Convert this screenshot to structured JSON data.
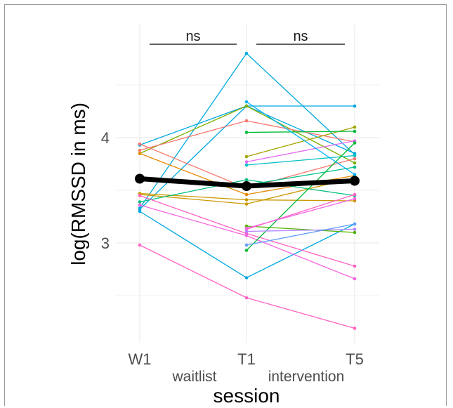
{
  "chart_data": {
    "type": "line",
    "xlabel": "session",
    "ylabel": "log(RMSSD in ms)",
    "categories": [
      "W1",
      "T1",
      "T5"
    ],
    "condition_labels": [
      "waitlist",
      "intervention"
    ],
    "significance": [
      {
        "from": "W1",
        "to": "T1",
        "label": "ns"
      },
      {
        "from": "T1",
        "to": "T5",
        "label": "ns"
      }
    ],
    "yticks": [
      3,
      4
    ],
    "ylim": [
      2.1,
      4.9
    ],
    "grid": true,
    "legend": "none",
    "mean": {
      "values": [
        3.61,
        3.54,
        3.59
      ],
      "color": "#000000"
    },
    "series": [
      {
        "values": [
          3.93,
          4.3,
          3.85
        ],
        "color": "#00A9E0"
      },
      {
        "values": [
          3.32,
          4.3,
          4.3
        ],
        "color": "#00A9E0"
      },
      {
        "values": [
          3.33,
          4.8,
          3.84
        ],
        "color": "#00A9E0"
      },
      {
        "values": [
          3.3,
          2.67,
          3.18
        ],
        "color": "#00A9E0"
      },
      {
        "values": [
          3.85,
          4.3,
          3.76
        ],
        "color": "#7CAE00"
      },
      {
        "values": [
          3.94,
          3.52,
          3.8
        ],
        "color": "#F8766D"
      },
      {
        "values": [
          3.88,
          4.16,
          3.96
        ],
        "color": "#F8766D"
      },
      {
        "values": [
          3.85,
          3.46,
          3.64
        ],
        "color": "#E58700"
      },
      {
        "values": [
          3.47,
          3.41,
          3.4
        ],
        "color": "#C99800"
      },
      {
        "values": [
          3.46,
          3.37,
          3.62
        ],
        "color": "#C99800"
      },
      {
        "values": [
          3.39,
          3.6,
          3.45
        ],
        "color": "#00BF7D"
      },
      {
        "values": [
          3.45,
          3.09,
          2.78
        ],
        "color": "#FF61C3"
      },
      {
        "values": [
          2.98,
          2.48,
          2.19
        ],
        "color": "#FF61C3"
      },
      {
        "values": [
          3.36,
          3.07,
          2.66
        ],
        "color": "#F564E3"
      },
      {
        "values": [
          null,
          3.82,
          4.1
        ],
        "color": "#A3A500"
      },
      {
        "values": [
          null,
          4.05,
          4.06
        ],
        "color": "#00BA38"
      },
      {
        "values": [
          null,
          3.77,
          3.97
        ],
        "color": "#E76BF3"
      },
      {
        "values": [
          null,
          3.74,
          3.83
        ],
        "color": "#00BFC4"
      },
      {
        "values": [
          null,
          3.55,
          3.72
        ],
        "color": "#00C08B"
      },
      {
        "values": [
          null,
          3.16,
          3.1
        ],
        "color": "#53B400"
      },
      {
        "values": [
          null,
          2.93,
          3.95
        ],
        "color": "#00BA38"
      },
      {
        "values": [
          null,
          3.13,
          3.46
        ],
        "color": "#FF61C3"
      },
      {
        "values": [
          null,
          3.11,
          3.13
        ],
        "color": "#B385FF"
      },
      {
        "values": [
          null,
          2.98,
          3.18
        ],
        "color": "#619CFF"
      },
      {
        "values": [
          null,
          3.14,
          3.42
        ],
        "color": "#F564E3"
      },
      {
        "values": [
          null,
          4.34,
          3.65
        ],
        "color": "#00B0F6"
      }
    ]
  }
}
